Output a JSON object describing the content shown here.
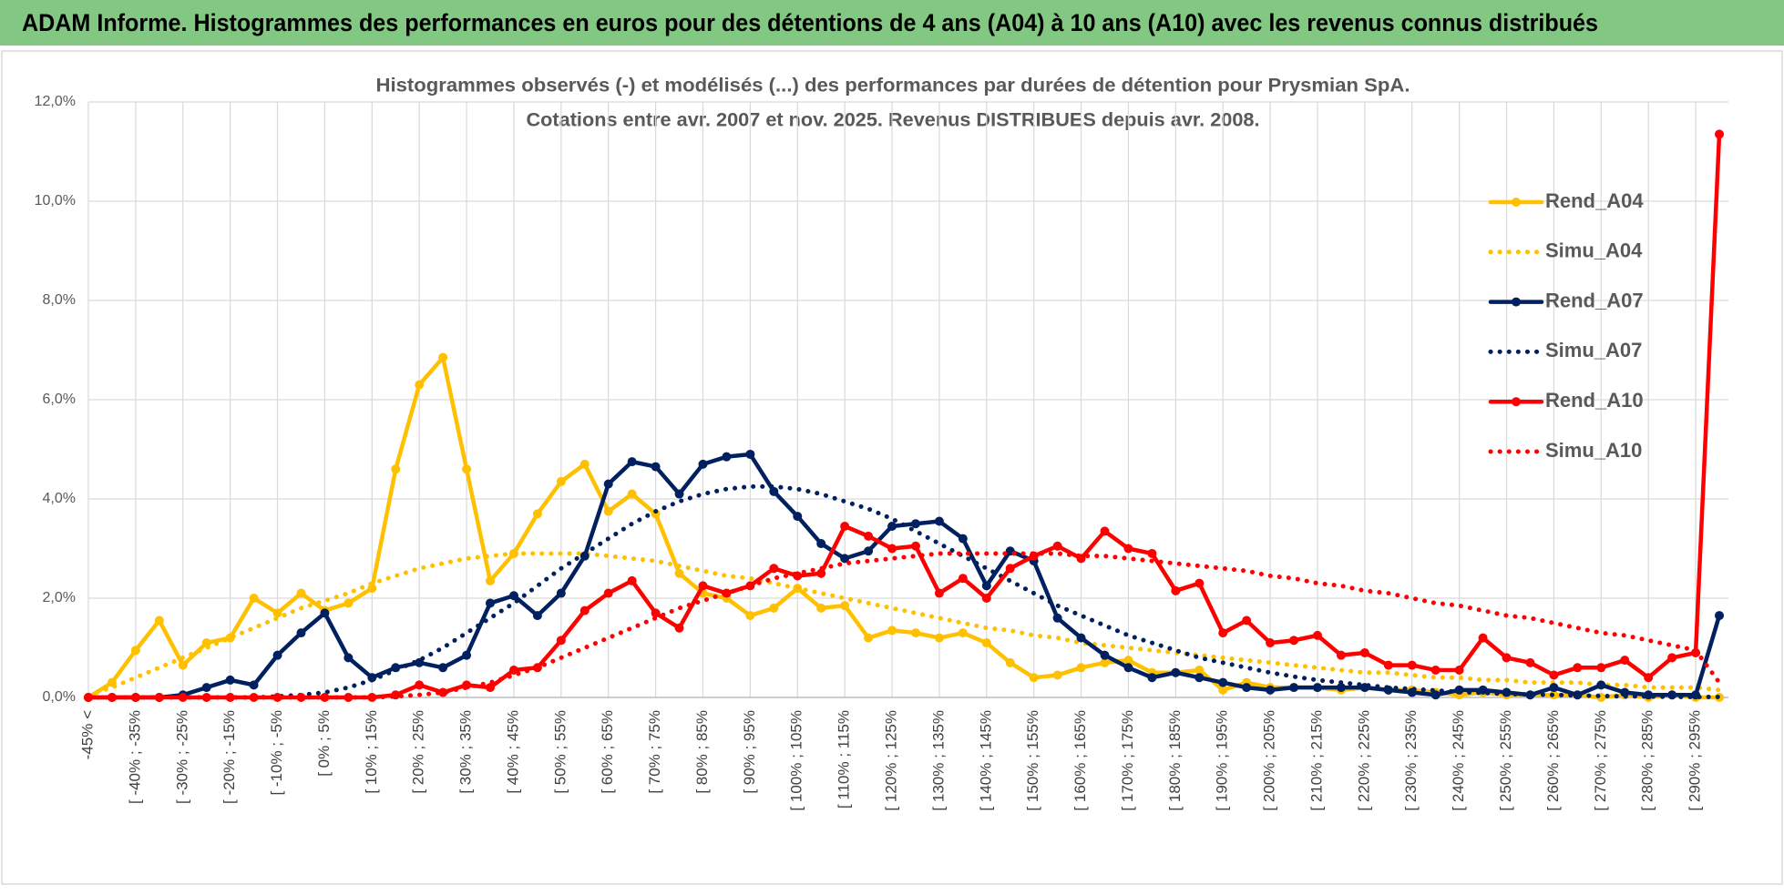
{
  "header": {
    "title": "ADAM Informe. Histogrammes des performances en euros pour des détentions de 4 ans (A04) à 10 ans (A10) avec les revenus connus distribués"
  },
  "chart_data": {
    "type": "line",
    "title": "Histogrammes observés (-) et modélisés (...) des performances par durées de détention pour Prysmian SpA.",
    "subtitle": "Cotations entre avr. 2007 et nov. 2025. Revenus DISTRIBUES depuis avr. 2008.",
    "categories": [
      "-45% <",
      null,
      "[ -40% ; -35%",
      null,
      "[ -30% ; -25%",
      null,
      "[ -20% ; -15%",
      null,
      "[ -10% ; -5%",
      null,
      "[ 0% ; 5%",
      null,
      "[ 10% ; 15%",
      null,
      "[ 20% ; 25%",
      null,
      "[ 30% ; 35%",
      null,
      "[ 40% ; 45%",
      null,
      "[ 50% ; 55%",
      null,
      "[ 60% ; 65%",
      null,
      "[ 70% ; 75%",
      null,
      "[ 80% ; 85%",
      null,
      "[ 90% ; 95%",
      null,
      "[ 100% ; 105%",
      null,
      "[ 110% ; 115%",
      null,
      "[ 120% ; 125%",
      null,
      "[ 130% ; 135%",
      null,
      "[ 140% ; 145%",
      null,
      "[ 150% ; 155%",
      null,
      "[ 160% ; 165%",
      null,
      "[ 170% ; 175%",
      null,
      "[ 180% ; 185%",
      null,
      "[ 190% ; 195%",
      null,
      "[ 200% ; 205%",
      null,
      "[ 210% ; 215%",
      null,
      "[ 220% ; 225%",
      null,
      "[ 230% ; 235%",
      null,
      "[ 240% ; 245%",
      null,
      "[ 250% ; 255%",
      null,
      "[ 260% ; 265%",
      null,
      "[ 270% ; 275%",
      null,
      "[ 280% ; 285%",
      null,
      "[ 290% ; 295%",
      null
    ],
    "series": [
      {
        "name": "Rend_A04",
        "color": "#ffc000",
        "style": "solid",
        "markers": true,
        "values": [
          0,
          0.3,
          0.95,
          1.55,
          0.65,
          1.1,
          1.2,
          2.0,
          1.7,
          2.1,
          1.75,
          1.9,
          2.2,
          4.6,
          6.3,
          6.85,
          4.6,
          2.35,
          2.9,
          3.7,
          4.35,
          4.7,
          3.75,
          4.1,
          3.7,
          2.5,
          2.1,
          2.0,
          1.65,
          1.8,
          2.2,
          1.8,
          1.85,
          1.2,
          1.35,
          1.3,
          1.2,
          1.3,
          1.1,
          0.7,
          0.4,
          0.45,
          0.6,
          0.7,
          0.75,
          0.5,
          0.5,
          0.55,
          0.15,
          0.3,
          0.2,
          0.2,
          0.2,
          0.15,
          0.2,
          0.15,
          0.15,
          0.1,
          0.05,
          0.1,
          0.05,
          0.05,
          0.05,
          0.05,
          0,
          0.05,
          0,
          0.05,
          0,
          0
        ]
      },
      {
        "name": "Simu_A04",
        "color": "#ffc000",
        "style": "dotted",
        "markers": false,
        "values": [
          0.05,
          0.2,
          0.4,
          0.6,
          0.8,
          1.0,
          1.2,
          1.4,
          1.6,
          1.8,
          1.95,
          2.1,
          2.3,
          2.45,
          2.6,
          2.7,
          2.8,
          2.85,
          2.9,
          2.9,
          2.9,
          2.9,
          2.85,
          2.8,
          2.75,
          2.65,
          2.55,
          2.45,
          2.4,
          2.3,
          2.2,
          2.1,
          2.0,
          1.9,
          1.8,
          1.7,
          1.6,
          1.5,
          1.4,
          1.35,
          1.25,
          1.2,
          1.1,
          1.05,
          1.0,
          0.95,
          0.9,
          0.85,
          0.8,
          0.75,
          0.7,
          0.65,
          0.6,
          0.55,
          0.5,
          0.5,
          0.45,
          0.4,
          0.4,
          0.35,
          0.35,
          0.3,
          0.3,
          0.3,
          0.25,
          0.25,
          0.2,
          0.2,
          0.2,
          0.15
        ]
      },
      {
        "name": "Rend_A07",
        "color": "#002060",
        "style": "solid",
        "markers": true,
        "values": [
          0,
          0,
          0,
          0,
          0.05,
          0.2,
          0.35,
          0.25,
          0.85,
          1.3,
          1.7,
          0.8,
          0.4,
          0.6,
          0.7,
          0.6,
          0.85,
          1.9,
          2.05,
          1.65,
          2.1,
          2.85,
          4.3,
          4.75,
          4.65,
          4.1,
          4.7,
          4.85,
          4.9,
          4.15,
          3.65,
          3.1,
          2.8,
          2.95,
          3.45,
          3.5,
          3.55,
          3.2,
          2.25,
          2.95,
          2.75,
          1.6,
          1.2,
          0.85,
          0.6,
          0.4,
          0.5,
          0.4,
          0.3,
          0.2,
          0.15,
          0.2,
          0.2,
          0.2,
          0.2,
          0.15,
          0.1,
          0.05,
          0.15,
          0.15,
          0.1,
          0.05,
          0.2,
          0.05,
          0.25,
          0.1,
          0.05,
          0.05,
          0.05,
          1.65
        ]
      },
      {
        "name": "Simu_A07",
        "color": "#002060",
        "style": "dotted",
        "markers": false,
        "values": [
          0,
          0,
          0,
          0,
          0,
          0,
          0,
          0,
          0.02,
          0.05,
          0.1,
          0.2,
          0.35,
          0.55,
          0.75,
          1.0,
          1.3,
          1.6,
          1.9,
          2.25,
          2.6,
          2.9,
          3.2,
          3.5,
          3.75,
          3.95,
          4.1,
          4.2,
          4.25,
          4.25,
          4.2,
          4.1,
          3.95,
          3.8,
          3.6,
          3.35,
          3.1,
          2.85,
          2.6,
          2.35,
          2.1,
          1.85,
          1.65,
          1.45,
          1.25,
          1.1,
          0.95,
          0.8,
          0.7,
          0.6,
          0.5,
          0.42,
          0.35,
          0.3,
          0.25,
          0.2,
          0.17,
          0.14,
          0.11,
          0.09,
          0.07,
          0.06,
          0.05,
          0.04,
          0.03,
          0.02,
          0.02,
          0.01,
          0.01,
          0.01
        ]
      },
      {
        "name": "Rend_A10",
        "color": "#ff0000",
        "style": "solid",
        "markers": true,
        "values": [
          0,
          0,
          0,
          0,
          0,
          0,
          0,
          0,
          0,
          0,
          0,
          0,
          0,
          0.05,
          0.25,
          0.1,
          0.25,
          0.2,
          0.55,
          0.6,
          1.15,
          1.75,
          2.1,
          2.35,
          1.7,
          1.4,
          2.25,
          2.1,
          2.25,
          2.6,
          2.45,
          2.5,
          3.45,
          3.25,
          3.0,
          3.05,
          2.1,
          2.4,
          2.0,
          2.6,
          2.85,
          3.05,
          2.8,
          3.35,
          3.0,
          2.9,
          2.15,
          2.3,
          1.3,
          1.55,
          1.1,
          1.15,
          1.25,
          0.85,
          0.9,
          0.65,
          0.65,
          0.55,
          0.55,
          1.2,
          0.8,
          0.7,
          0.45,
          0.6,
          0.6,
          0.75,
          0.4,
          0.8,
          0.9,
          11.35
        ]
      },
      {
        "name": "Simu_A10",
        "color": "#ff0000",
        "style": "dotted",
        "markers": false,
        "values": [
          0,
          0,
          0,
          0,
          0,
          0,
          0,
          0,
          0,
          0,
          0,
          0,
          0,
          0.02,
          0.05,
          0.1,
          0.2,
          0.3,
          0.45,
          0.6,
          0.8,
          1.0,
          1.2,
          1.4,
          1.6,
          1.8,
          1.95,
          2.1,
          2.25,
          2.4,
          2.5,
          2.6,
          2.7,
          2.75,
          2.8,
          2.85,
          2.9,
          2.9,
          2.9,
          2.9,
          2.9,
          2.9,
          2.85,
          2.85,
          2.8,
          2.75,
          2.7,
          2.65,
          2.6,
          2.55,
          2.45,
          2.4,
          2.3,
          2.25,
          2.15,
          2.1,
          2.0,
          1.9,
          1.85,
          1.75,
          1.65,
          1.6,
          1.5,
          1.4,
          1.3,
          1.25,
          1.15,
          1.05,
          0.95,
          0.3
        ]
      }
    ],
    "ylim": [
      0,
      12
    ],
    "yticks": [
      {
        "value": 0,
        "label": "0,0%"
      },
      {
        "value": 2,
        "label": "2,0%"
      },
      {
        "value": 4,
        "label": "4,0%"
      },
      {
        "value": 6,
        "label": "6,0%"
      },
      {
        "value": 8,
        "label": "8,0%"
      },
      {
        "value": 10,
        "label": "10,0%"
      },
      {
        "value": 12,
        "label": "12,0%"
      }
    ],
    "grid": true,
    "legend": "right"
  }
}
